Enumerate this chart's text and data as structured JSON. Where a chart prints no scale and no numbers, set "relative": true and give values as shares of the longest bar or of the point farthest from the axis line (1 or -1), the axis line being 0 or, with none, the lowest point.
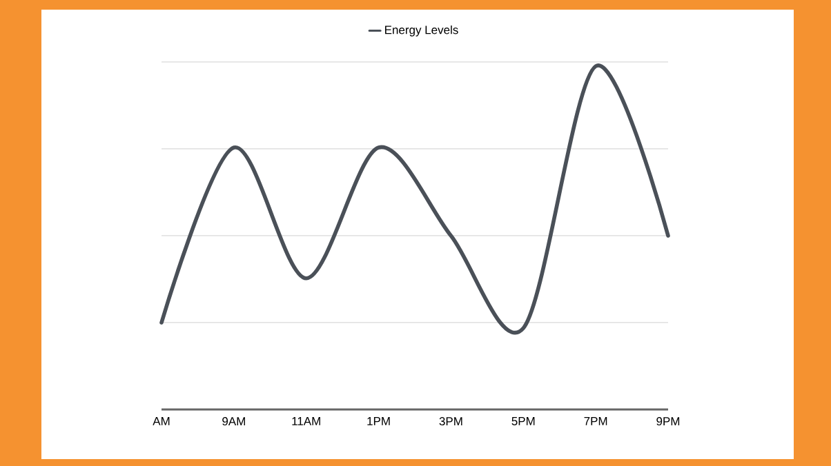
{
  "chart_data": {
    "type": "line",
    "relative": true,
    "categories": [
      "AM",
      "9AM",
      "11AM",
      "1PM",
      "3PM",
      "5PM",
      "7PM",
      "9PM"
    ],
    "series": [
      {
        "name": "Energy Levels",
        "color": "#4a5058",
        "values": [
          0.253,
          0.763,
          0.382,
          0.763,
          0.506,
          0.237,
          1,
          0.506
        ]
      }
    ],
    "grid": "y",
    "legend": "top",
    "marker": "none",
    "line_style": "solid"
  }
}
